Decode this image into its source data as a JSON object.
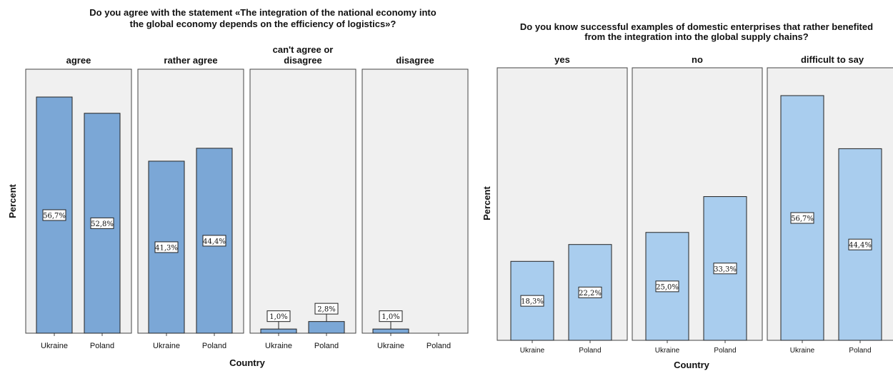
{
  "chart_data": [
    {
      "type": "bar",
      "title_line1": "Do you agree with the statement «The integration of the national economy into",
      "title_line2": "the global economy depends on the efficiency of logistics»?",
      "xlabel": "Country",
      "ylabel": "Percent",
      "ylim": [
        0,
        60
      ],
      "categories": [
        "Ukraine",
        "Poland"
      ],
      "bar_color": "#7ba7d6",
      "panels": [
        {
          "label_lines": [
            "agree"
          ],
          "values": [
            56.7,
            52.8
          ],
          "labels": [
            "56,7%",
            "52,8%"
          ]
        },
        {
          "label_lines": [
            "rather agree"
          ],
          "values": [
            41.3,
            44.4
          ],
          "labels": [
            "41,3%",
            "44,4%"
          ]
        },
        {
          "label_lines": [
            "can't agree or",
            "disagree"
          ],
          "values": [
            1.0,
            2.8
          ],
          "labels": [
            "1,0%",
            "2,8%"
          ]
        },
        {
          "label_lines": [
            "disagree"
          ],
          "values": [
            1.0,
            0
          ],
          "labels": [
            "1,0%",
            ""
          ]
        }
      ]
    },
    {
      "type": "bar",
      "title_line1": "Do you know successful examples of domestic enterprises that rather benefited",
      "title_line2": "from the integration into the global supply chains?",
      "xlabel": "Country",
      "ylabel": "Percent",
      "ylim": [
        0,
        60
      ],
      "categories": [
        "Ukraine",
        "Poland"
      ],
      "bar_color": "#a9cdee",
      "panels": [
        {
          "label_lines": [
            "yes"
          ],
          "values": [
            18.3,
            22.2
          ],
          "labels": [
            "18,3%",
            "22,2%"
          ]
        },
        {
          "label_lines": [
            "no"
          ],
          "values": [
            25.0,
            33.3
          ],
          "labels": [
            "25,0%",
            "33,3%"
          ]
        },
        {
          "label_lines": [
            "difficult to say"
          ],
          "values": [
            56.7,
            44.4
          ],
          "labels": [
            "56,7%",
            "44,4%"
          ]
        }
      ]
    }
  ]
}
